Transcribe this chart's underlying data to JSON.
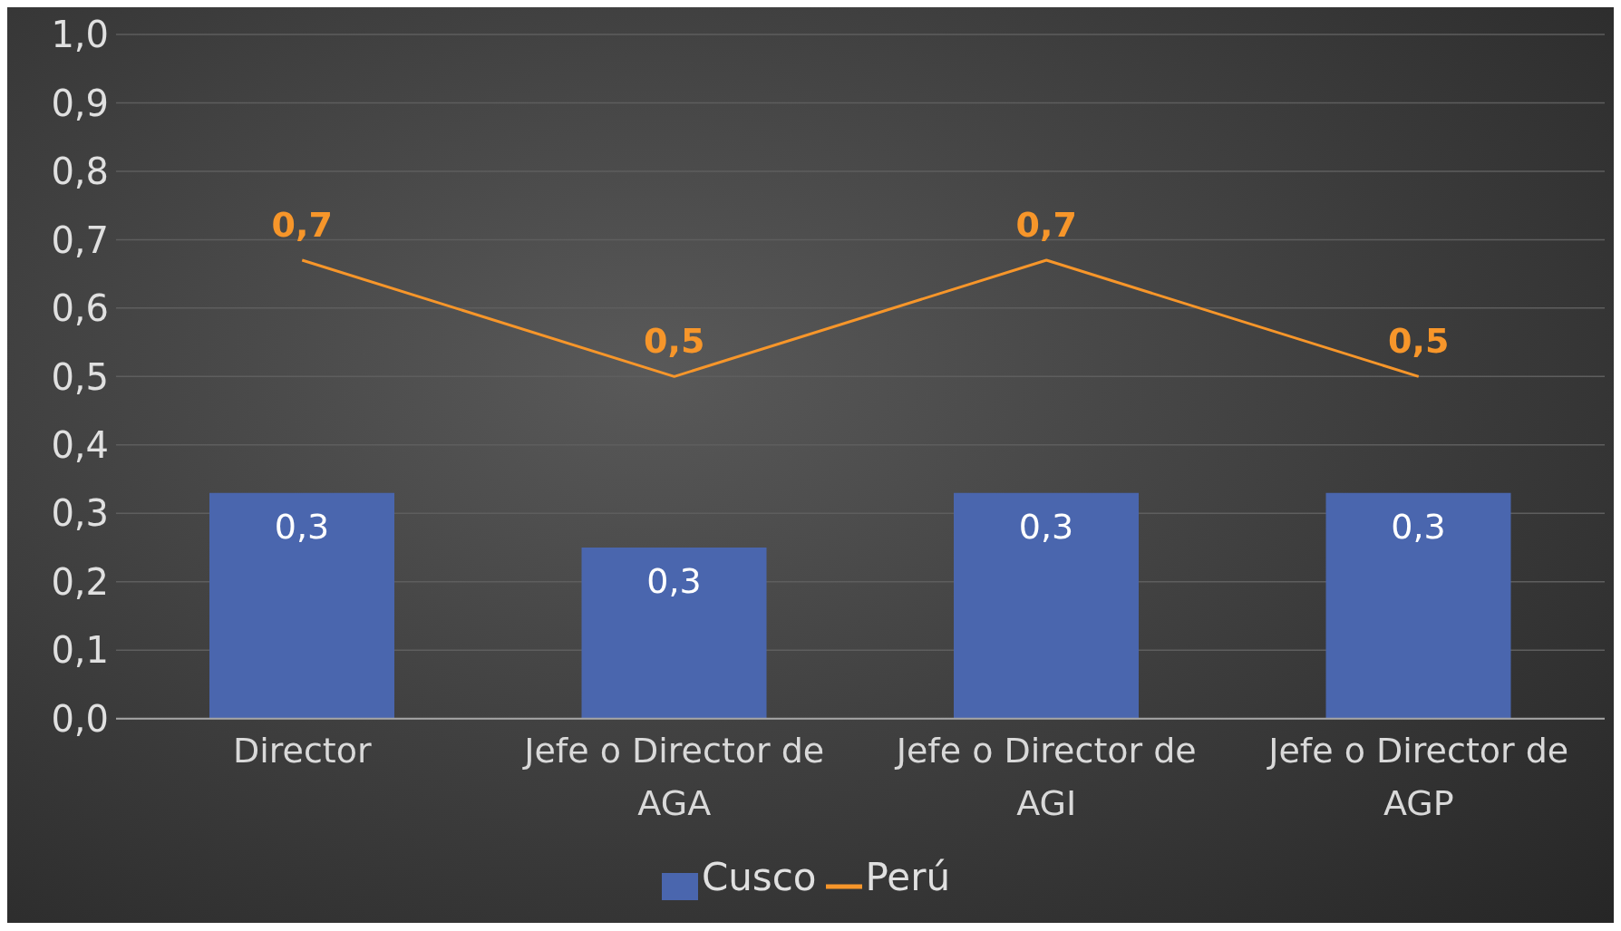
{
  "chart_data": {
    "type": "bar",
    "categories": [
      "Director",
      "Jefe o Director de AGA",
      "Jefe o Director de AGI",
      "Jefe o Director de AGP"
    ],
    "series": [
      {
        "name": "Cusco",
        "color": "#4a66ae",
        "values": [
          0.33,
          0.25,
          0.33,
          0.33
        ],
        "value_labels": [
          "0,3",
          "0,3",
          "0,3",
          "0,3"
        ]
      },
      {
        "name": "Perú",
        "type": "line",
        "color": "#f7962a",
        "values": [
          0.67,
          0.5,
          0.67,
          0.5
        ],
        "value_labels": [
          "0,7",
          "0,5",
          "0,7",
          "0,5"
        ]
      }
    ],
    "ylim": [
      0,
      1
    ],
    "yticks": [
      {
        "value": 0,
        "label": "0,0"
      },
      {
        "value": 0.1,
        "label": "0,1"
      },
      {
        "value": 0.2,
        "label": "0,2"
      },
      {
        "value": 0.3,
        "label": "0,3"
      },
      {
        "value": 0.4,
        "label": "0,4"
      },
      {
        "value": 0.5,
        "label": "0,5"
      },
      {
        "value": 0.6,
        "label": "0,6"
      },
      {
        "value": 0.7,
        "label": "0,7"
      },
      {
        "value": 0.8,
        "label": "0,8"
      },
      {
        "value": 0.9,
        "label": "0,9"
      },
      {
        "value": 1,
        "label": "1,0"
      }
    ],
    "grid": "y",
    "legend": "bottom",
    "marker": "none"
  }
}
